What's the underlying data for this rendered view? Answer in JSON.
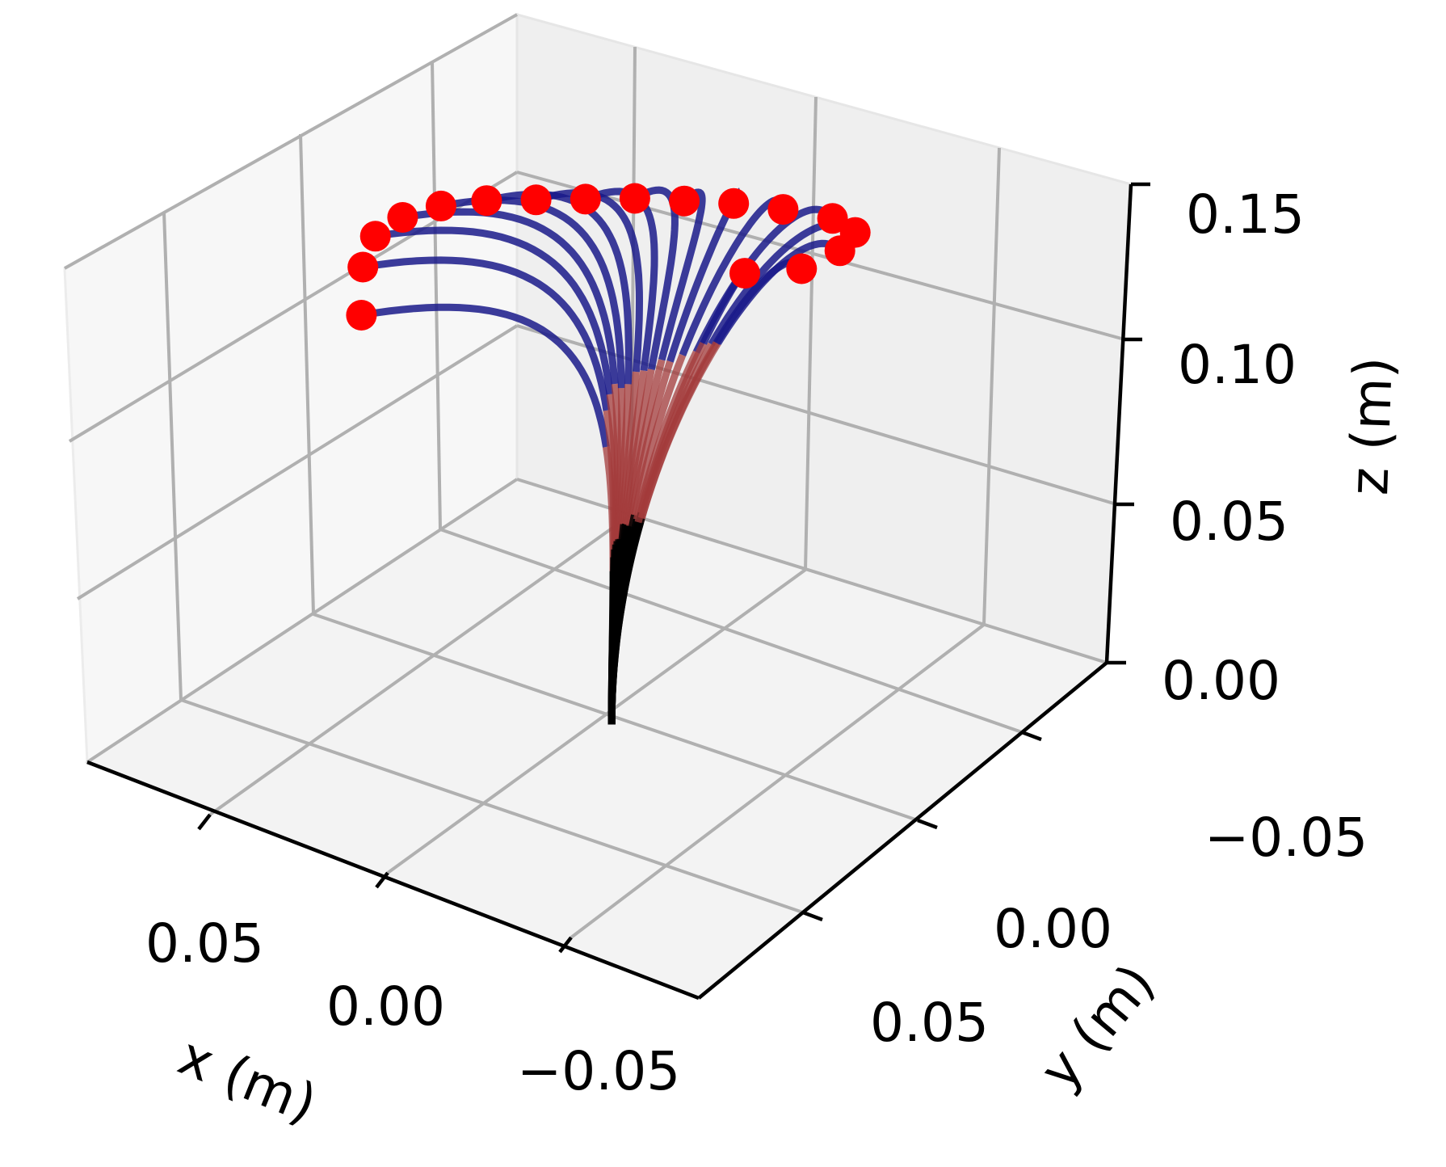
{
  "chart_data": {
    "type": "line",
    "projection": "3d",
    "axes": {
      "x": {
        "label": "x (m)",
        "ticks": [
          "0.05",
          "0.00",
          "−0.05"
        ]
      },
      "y": {
        "label": "y (m)",
        "ticks": [
          "−0.05",
          "0.00",
          "0.05"
        ]
      },
      "z": {
        "label": "z (m)",
        "ticks": [
          "0.00",
          "0.05",
          "0.10",
          "0.15"
        ],
        "zlim": [
          0,
          0.15
        ]
      }
    },
    "grid": true,
    "segment_colors": {
      "base": "#000000",
      "middle": "#a33b3b",
      "tip": "#1a1a8a",
      "endpoint": "#ff0000"
    },
    "series": [
      {
        "base": [
          -0.002,
          0.0,
          0.0
        ],
        "segment_ends": [
          0.045,
          0.084
        ],
        "tip": [
          0.055,
          -0.01,
          0.108
        ]
      },
      {
        "base": [
          -0.002,
          0.0,
          0.0
        ],
        "segment_ends": [
          0.05,
          0.095
        ],
        "tip": [
          0.06,
          -0.005,
          0.117
        ]
      },
      {
        "base": [
          -0.002,
          0.0,
          0.0
        ],
        "segment_ends": [
          0.052,
          0.098
        ],
        "tip": [
          0.062,
          0.0,
          0.122
        ]
      },
      {
        "base": [
          -0.002,
          0.0,
          0.0
        ],
        "segment_ends": [
          0.053,
          0.1
        ],
        "tip": [
          0.06,
          0.005,
          0.125
        ]
      },
      {
        "base": [
          -0.002,
          0.0,
          0.0
        ],
        "segment_ends": [
          0.054,
          0.101
        ],
        "tip": [
          0.055,
          0.01,
          0.127
        ]
      },
      {
        "base": [
          -0.002,
          0.0,
          0.0
        ],
        "segment_ends": [
          0.055,
          0.102
        ],
        "tip": [
          0.048,
          0.015,
          0.128
        ]
      },
      {
        "base": [
          -0.002,
          0.0,
          0.0
        ],
        "segment_ends": [
          0.056,
          0.103
        ],
        "tip": [
          0.04,
          0.02,
          0.128
        ]
      },
      {
        "base": [
          -0.002,
          0.0,
          0.0
        ],
        "segment_ends": [
          0.057,
          0.104
        ],
        "tip": [
          0.032,
          0.025,
          0.128
        ]
      },
      {
        "base": [
          -0.002,
          0.0,
          0.0
        ],
        "segment_ends": [
          0.058,
          0.105
        ],
        "tip": [
          0.024,
          0.03,
          0.128
        ]
      },
      {
        "base": [
          -0.002,
          0.0,
          0.0
        ],
        "segment_ends": [
          0.058,
          0.105
        ],
        "tip": [
          0.016,
          0.035,
          0.127
        ]
      },
      {
        "base": [
          -0.002,
          0.0,
          0.0
        ],
        "segment_ends": [
          0.059,
          0.106
        ],
        "tip": [
          0.008,
          0.04,
          0.126
        ]
      },
      {
        "base": [
          -0.002,
          0.0,
          0.0
        ],
        "segment_ends": [
          0.059,
          0.106
        ],
        "tip": [
          0.0,
          0.045,
          0.124
        ]
      },
      {
        "base": [
          -0.002,
          0.0,
          0.0
        ],
        "segment_ends": [
          0.06,
          0.107
        ],
        "tip": [
          -0.008,
          0.05,
          0.121
        ]
      },
      {
        "base": [
          -0.002,
          0.0,
          0.0
        ],
        "segment_ends": [
          0.06,
          0.107
        ],
        "tip": [
          -0.012,
          0.052,
          0.117
        ]
      },
      {
        "base": [
          -0.002,
          0.0,
          0.0
        ],
        "segment_ends": [
          0.06,
          0.107
        ],
        "tip": [
          -0.01,
          0.05,
          0.112
        ]
      },
      {
        "base": [
          -0.002,
          0.0,
          0.0
        ],
        "segment_ends": [
          0.06,
          0.107
        ],
        "tip": [
          -0.005,
          0.045,
          0.108
        ]
      },
      {
        "base": [
          -0.002,
          0.0,
          0.0
        ],
        "segment_ends": [
          0.06,
          0.107
        ],
        "tip": [
          0.005,
          0.04,
          0.106
        ]
      }
    ]
  }
}
